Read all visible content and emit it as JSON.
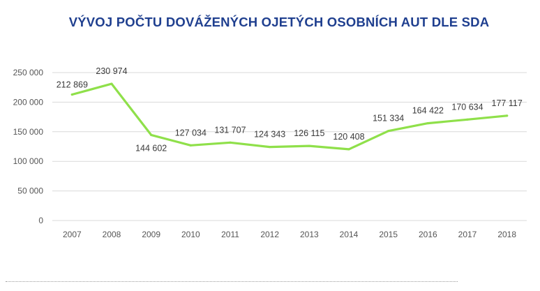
{
  "chart_data": {
    "type": "line",
    "title": "VÝVOJ POČTU DOVÁŽENÝCH OJETÝCH OSOBNÍCH AUT DLE SDA",
    "xlabel": "",
    "ylabel": "",
    "categories": [
      "2007",
      "2008",
      "2009",
      "2010",
      "2011",
      "2012",
      "2013",
      "2014",
      "2015",
      "2016",
      "2017",
      "2018"
    ],
    "series": [
      {
        "values": [
          212869,
          230974,
          144602,
          127034,
          131707,
          124343,
          126115,
          120408,
          151334,
          164422,
          170634,
          177117
        ],
        "labels": [
          "212 869",
          "230 974",
          "144 602",
          "127 034",
          "131 707",
          "124 343",
          "126 115",
          "120 408",
          "151 334",
          "164 422",
          "170 634",
          "177 117"
        ],
        "color": "#8fe04a"
      }
    ],
    "ylim": [
      0,
      250000
    ],
    "yticks": [
      0,
      50000,
      100000,
      150000,
      200000,
      250000
    ],
    "ytick_labels": [
      "0",
      "50 000",
      "100 000",
      "150 000",
      "200 000",
      "250 000"
    ],
    "grid": true,
    "legend": "none",
    "colors": {
      "title": "#1f3f8f",
      "grid": "#d9d9d9",
      "line": "#8fe04a"
    }
  }
}
